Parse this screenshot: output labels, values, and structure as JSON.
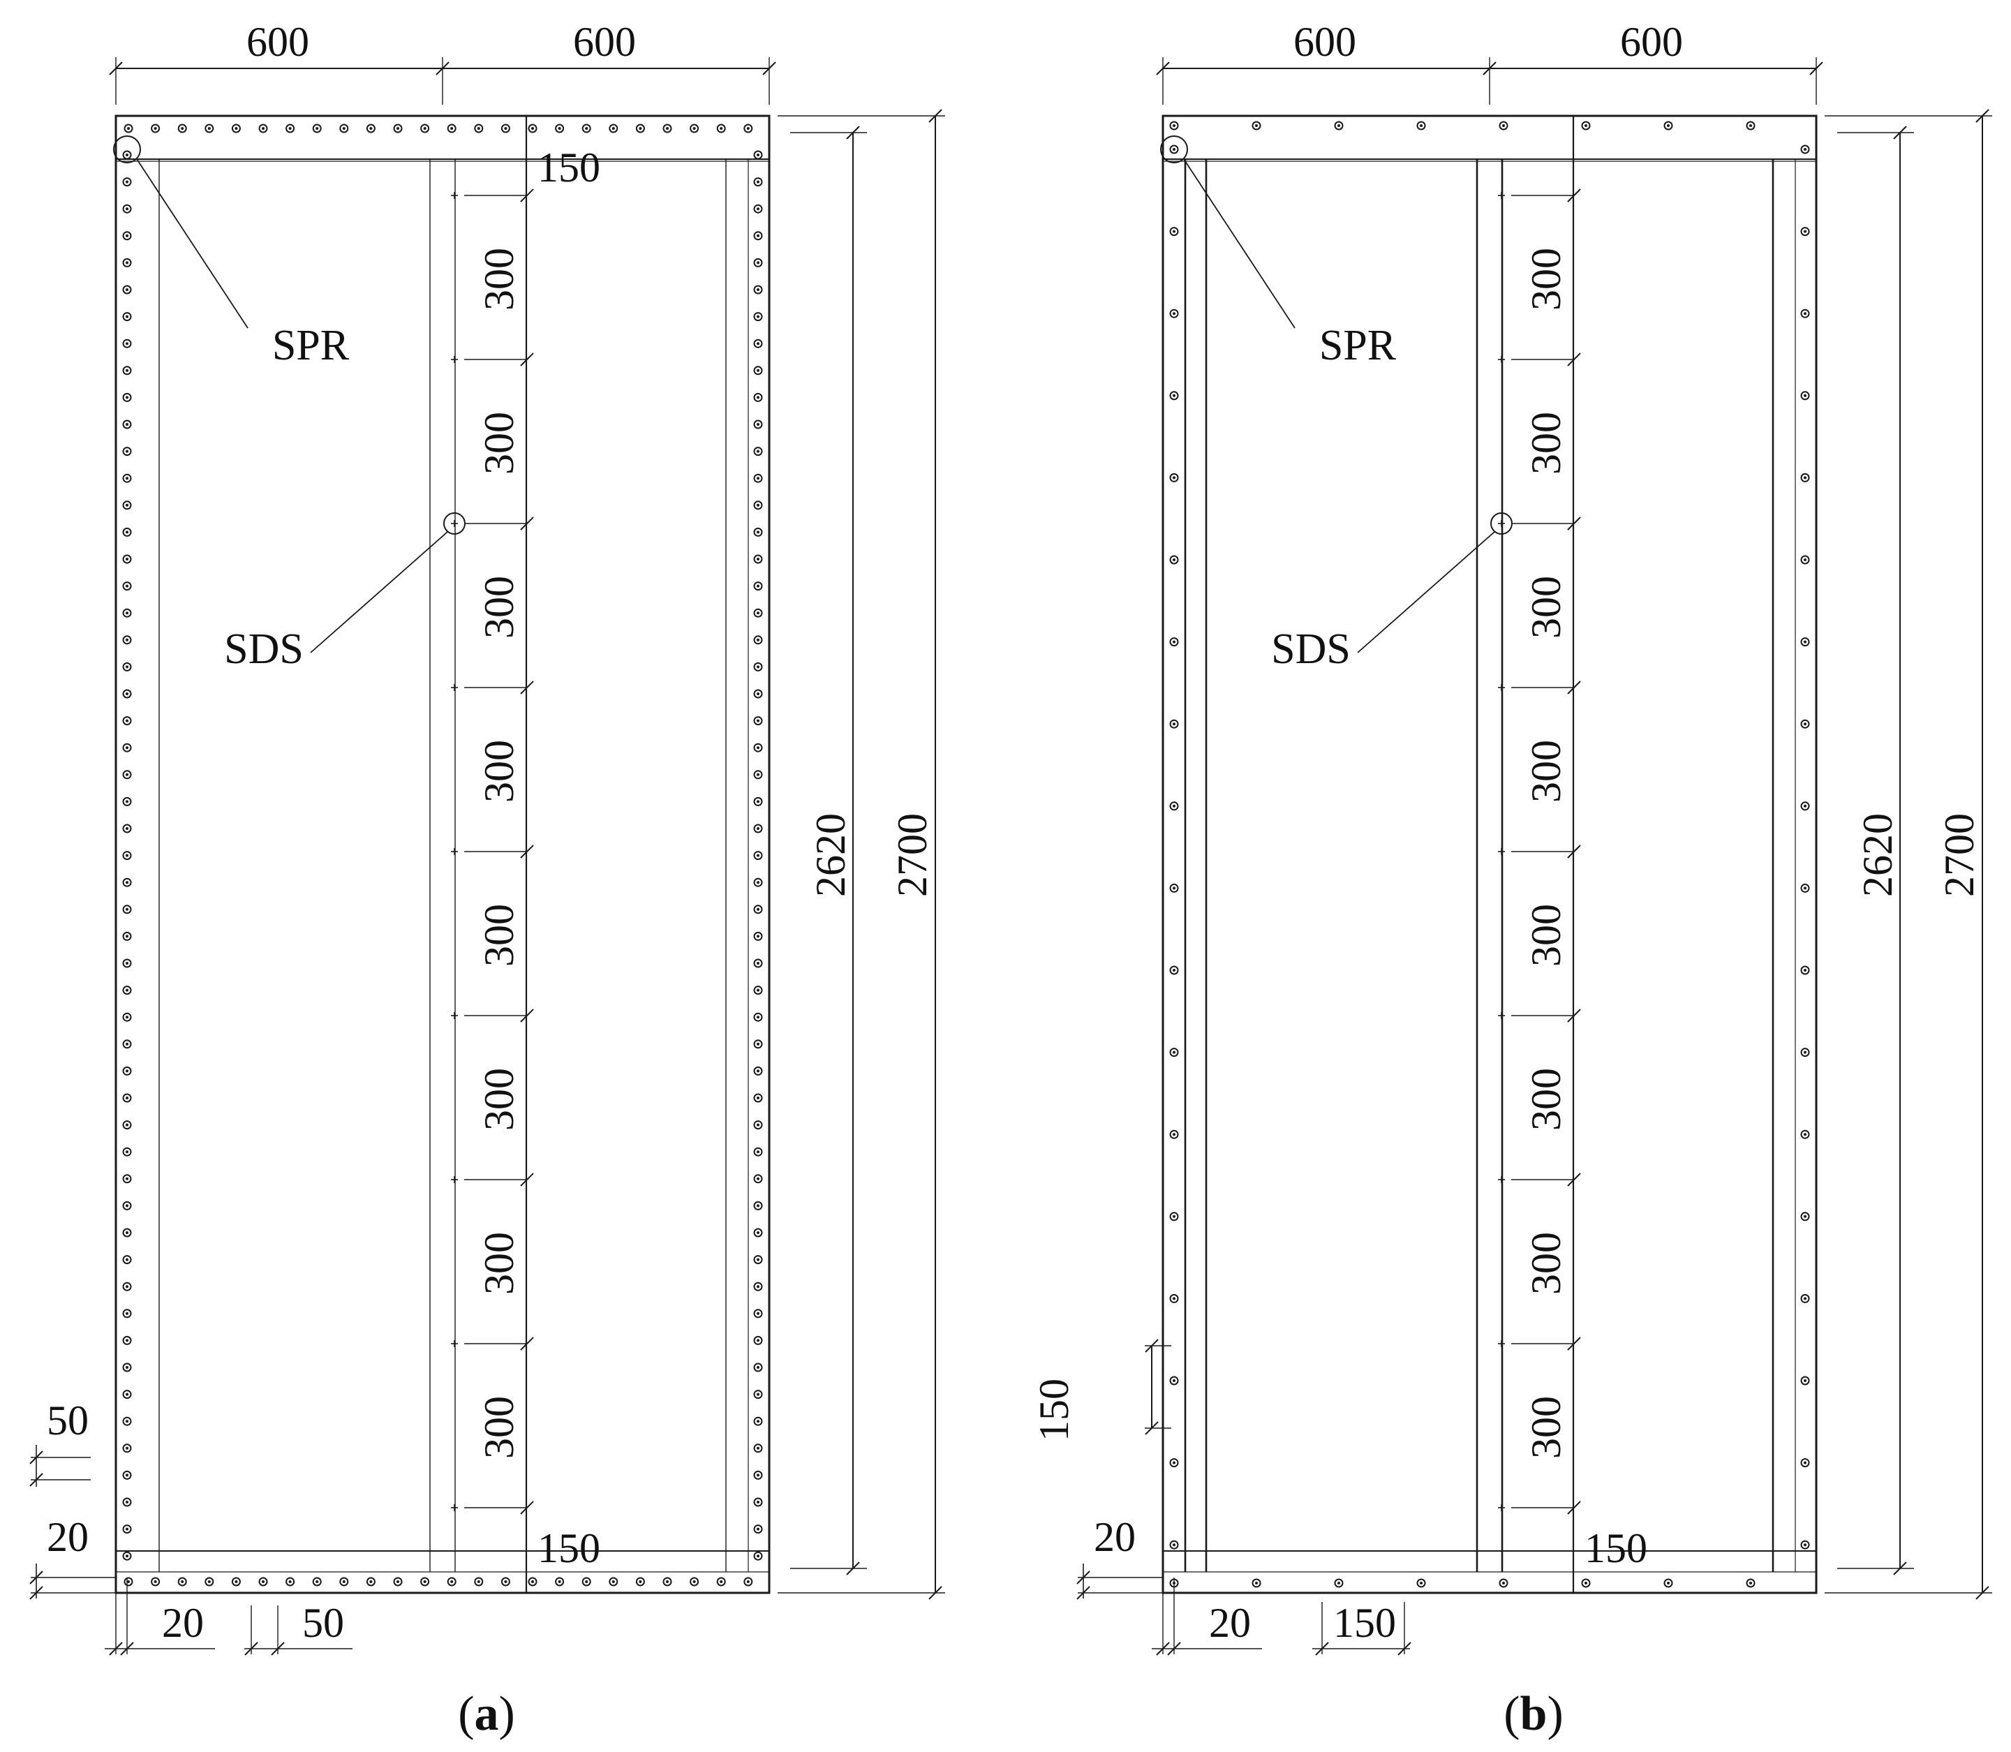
{
  "panels": [
    {
      "id": "a",
      "caption_open": "(",
      "caption_letter": "a",
      "caption_close": ")",
      "callouts": {
        "spr": "SPR",
        "sds": "SDS"
      },
      "top_widths": [
        "600",
        "600"
      ],
      "top_edge_label": "150",
      "bottom_edge_label": "150",
      "height_inner": "2620",
      "height_outer": "2700",
      "screw_spacing_labels": [
        "300",
        "300",
        "300",
        "300",
        "300",
        "300",
        "300",
        "300"
      ],
      "left_small_dims": [
        "50",
        "20"
      ],
      "bottom_small_dims": [
        "20",
        "50"
      ],
      "edge_fastener_spacing": "dense"
    },
    {
      "id": "b",
      "caption_open": "(",
      "caption_letter": "b",
      "caption_close": ")",
      "callouts": {
        "spr": "SPR",
        "sds": "SDS"
      },
      "top_widths": [
        "600",
        "600"
      ],
      "top_edge_label": "",
      "bottom_edge_label": "150",
      "height_inner": "2620",
      "height_outer": "2700",
      "screw_spacing_labels": [
        "300",
        "300",
        "300",
        "300",
        "300",
        "300",
        "300",
        "300"
      ],
      "left_small_dims": [
        "150",
        "20"
      ],
      "bottom_small_dims": [
        "20",
        "150"
      ],
      "edge_fastener_spacing": "sparse"
    }
  ],
  "colors": {
    "line": "#1a1a1a",
    "paper": "#ffffff"
  }
}
